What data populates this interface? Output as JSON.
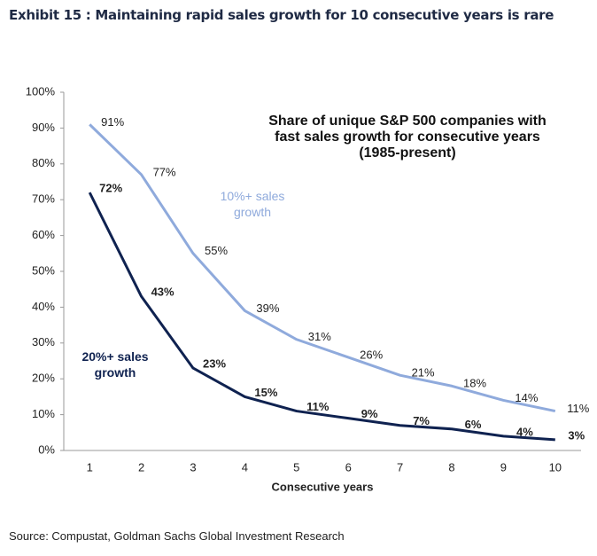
{
  "chart_data": {
    "type": "line",
    "title": "Exhibit 15 : Maintaining rapid sales growth for 10 consecutive years is rare",
    "annotation": "Share of unique S&P 500 companies with fast sales growth for consecutive years (1985-present)",
    "x_label": "Consecutive years",
    "source": "Source: Compustat, Goldman Sachs Global Investment Research",
    "categories": [
      "1",
      "2",
      "3",
      "4",
      "5",
      "6",
      "7",
      "8",
      "9",
      "10"
    ],
    "series": [
      {
        "name": "10%+ sales growth",
        "color": "#8faadc",
        "values": [
          91,
          77,
          55,
          39,
          31,
          26,
          21,
          18,
          14,
          11
        ],
        "value_labels": [
          "91%",
          "77%",
          "55%",
          "39%",
          "31%",
          "26%",
          "21%",
          "18%",
          "14%",
          "11%"
        ]
      },
      {
        "name": "20%+ sales growth",
        "color": "#0f2250",
        "values": [
          72,
          43,
          23,
          15,
          11,
          9,
          7,
          6,
          4,
          3
        ],
        "value_labels": [
          "72%",
          "43%",
          "23%",
          "15%",
          "11%",
          "9%",
          "7%",
          "6%",
          "4%",
          "3%"
        ]
      }
    ],
    "ylim": [
      0,
      100
    ],
    "yticks": [
      {
        "value": 0,
        "label": "0%"
      },
      {
        "value": 10,
        "label": "10%"
      },
      {
        "value": 20,
        "label": "20%"
      },
      {
        "value": 30,
        "label": "30%"
      },
      {
        "value": 40,
        "label": "40%"
      },
      {
        "value": 50,
        "label": "50%"
      },
      {
        "value": 60,
        "label": "60%"
      },
      {
        "value": 70,
        "label": "70%"
      },
      {
        "value": 80,
        "label": "80%"
      },
      {
        "value": 90,
        "label": "90%"
      },
      {
        "value": 100,
        "label": "100%"
      }
    ]
  }
}
